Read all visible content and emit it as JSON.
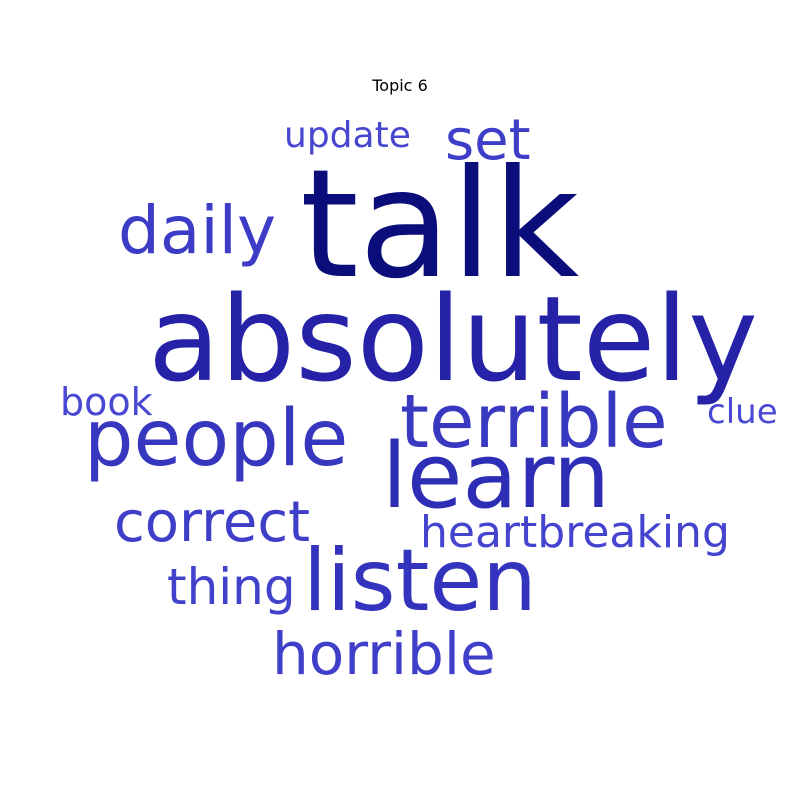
{
  "title": "Topic 6",
  "words": [
    {
      "id": "talk",
      "text": "talk",
      "color": "#0b0d7a"
    },
    {
      "id": "absolutely",
      "text": "absolutely",
      "color": "#2522a8"
    },
    {
      "id": "learn",
      "text": "learn",
      "color": "#2e2db5"
    },
    {
      "id": "listen",
      "text": "listen",
      "color": "#3433bd"
    },
    {
      "id": "people",
      "text": "people",
      "color": "#3636bf"
    },
    {
      "id": "terrible",
      "text": "terrible",
      "color": "#3838c0"
    },
    {
      "id": "daily",
      "text": "daily",
      "color": "#3c3cc6"
    },
    {
      "id": "set",
      "text": "set",
      "color": "#3e3ec8"
    },
    {
      "id": "correct",
      "text": "correct",
      "color": "#3e3ec8"
    },
    {
      "id": "horrible",
      "text": "horrible",
      "color": "#3f3fca"
    },
    {
      "id": "thing",
      "text": "thing",
      "color": "#4141cc"
    },
    {
      "id": "heartbreaking",
      "text": "heartbreaking",
      "color": "#4444cf"
    },
    {
      "id": "update",
      "text": "update",
      "color": "#4646d1"
    },
    {
      "id": "book",
      "text": "book",
      "color": "#4848d3"
    },
    {
      "id": "clue",
      "text": "clue",
      "color": "#4848d3"
    }
  ]
}
